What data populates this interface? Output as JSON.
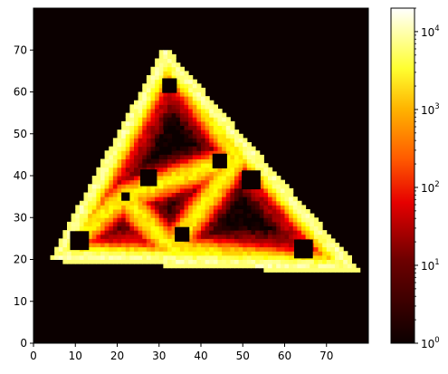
{
  "chart_data": {
    "type": "heatmap",
    "title": "",
    "xlabel": "",
    "ylabel": "",
    "xlim": [
      0,
      80
    ],
    "ylim": [
      0,
      80
    ],
    "x_ticks": [
      "0",
      "10",
      "20",
      "30",
      "40",
      "50",
      "60",
      "70"
    ],
    "y_ticks": [
      "0",
      "10",
      "20",
      "30",
      "40",
      "50",
      "60",
      "70"
    ],
    "colormap": "hot",
    "color_scale": "log",
    "color_range": [
      1,
      20000
    ],
    "colorbar_ticks": [
      {
        "base": "10",
        "exp": "0",
        "value": 1
      },
      {
        "base": "10",
        "exp": "1",
        "value": 10
      },
      {
        "base": "10",
        "exp": "2",
        "value": 100
      },
      {
        "base": "10",
        "exp": "3",
        "value": 1000
      },
      {
        "base": "10",
        "exp": "4",
        "value": 10000
      }
    ],
    "background_value": 1,
    "boundary": {
      "vertices": [
        [
          5,
          20.5
        ],
        [
          77,
          17.5
        ],
        [
          31.5,
          69.5
        ]
      ],
      "edge_value": 8000
    },
    "inner_edges": {
      "vertices": [
        [
          21.5,
          35
        ],
        [
          49,
          44.5
        ],
        [
          33,
          22.5
        ]
      ],
      "value": 1500
    },
    "struts": [
      {
        "from": [
          21.5,
          35
        ],
        "to": [
          5,
          20.5
        ]
      },
      {
        "from": [
          49,
          44.5
        ],
        "to": [
          31.5,
          69.5
        ]
      },
      {
        "from": [
          33,
          22.5
        ],
        "to": [
          77,
          17.5
        ]
      }
    ],
    "obstacles": [
      {
        "x": 11,
        "y": 24.5,
        "size": 4.5
      },
      {
        "x": 32.5,
        "y": 61.5,
        "size": 3.5
      },
      {
        "x": 27.5,
        "y": 39.5,
        "size": 4
      },
      {
        "x": 44.5,
        "y": 43.5,
        "size": 3.5
      },
      {
        "x": 52,
        "y": 39,
        "size": 4.5
      },
      {
        "x": 22,
        "y": 35,
        "size": 2
      },
      {
        "x": 35.5,
        "y": 26,
        "size": 3.5
      },
      {
        "x": 64.5,
        "y": 22.5,
        "size": 4.5
      }
    ]
  }
}
